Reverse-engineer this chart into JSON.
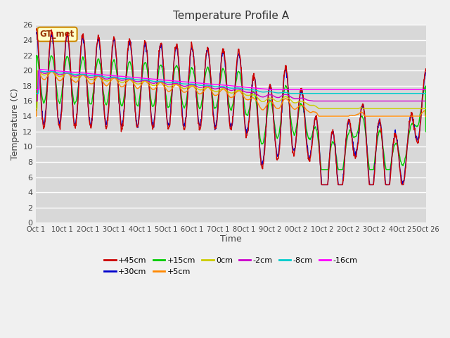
{
  "title": "Temperature Profile A",
  "xlabel": "Time",
  "ylabel": "Temperature (C)",
  "ylim": [
    0,
    26
  ],
  "yticks": [
    0,
    2,
    4,
    6,
    8,
    10,
    12,
    14,
    16,
    18,
    20,
    22,
    24,
    26
  ],
  "xtick_labels": [
    "Oct 1",
    "10ct 1",
    "2Oct 1",
    "3Oct 1",
    "4Oct 1",
    "5Oct 1",
    "6Oct 1",
    "7Oct 1",
    "8Oct 1",
    "9Oct 2",
    "0Oct 2",
    "1Oct 2",
    "2Oct 2",
    "3Oct 2",
    "4Oct 2",
    "5Oct 26"
  ],
  "legend_labels": [
    "+45cm",
    "+30cm",
    "+15cm",
    "+5cm",
    "0cm",
    "-2cm",
    "-8cm",
    "-16cm"
  ],
  "legend_colors": [
    "#cc0000",
    "#0000cc",
    "#00cc00",
    "#ff8800",
    "#cccc00",
    "#cc00cc",
    "#00cccc",
    "#ff00ff"
  ],
  "annotation_text": "GT_met",
  "annotation_bg": "#ffffc8",
  "annotation_border": "#cc8800",
  "annotation_text_color": "#993300",
  "plot_bg": "#d8d8d8",
  "grid_color": "#ffffff",
  "fig_bg": "#f0f0f0",
  "figsize": [
    6.4,
    4.8
  ],
  "dpi": 100
}
